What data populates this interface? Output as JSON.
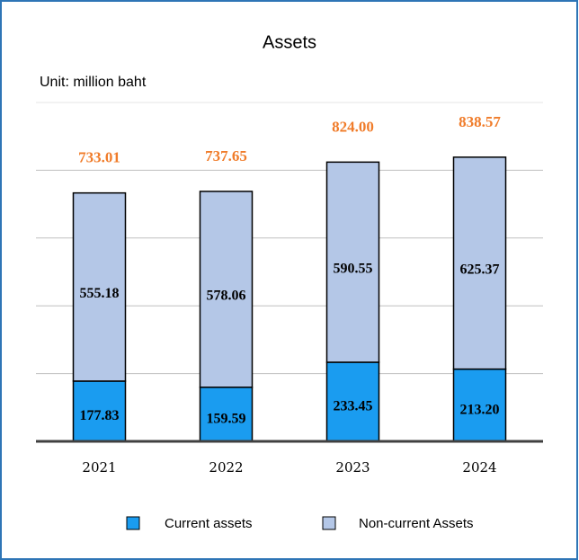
{
  "chart_data": {
    "type": "stacked_bar",
    "title": "Assets",
    "subtitle": "Unit: million baht",
    "categories": [
      "2021",
      "2022",
      "2023",
      "2024"
    ],
    "series": [
      {
        "name": "Current assets",
        "color": "#1a9cf0",
        "values": [
          177.83,
          159.59,
          233.45,
          213.2
        ],
        "value_labels": [
          "177.83",
          "159.59",
          "233.45",
          "213.20"
        ]
      },
      {
        "name": "Non-current Assets",
        "color": "#b4c7e7",
        "values": [
          555.18,
          578.06,
          590.55,
          625.37
        ],
        "value_labels": [
          "555.18",
          "578.06",
          "590.55",
          "625.37"
        ]
      }
    ],
    "totals": [
      733.01,
      737.65,
      824.0,
      838.57
    ],
    "totals_labels": [
      "733.01",
      "737.65",
      "824.00",
      "838.57"
    ],
    "ylim": [
      0,
      1000
    ],
    "yticks": [
      0,
      200,
      400,
      600,
      800,
      1000
    ],
    "grid": true
  }
}
